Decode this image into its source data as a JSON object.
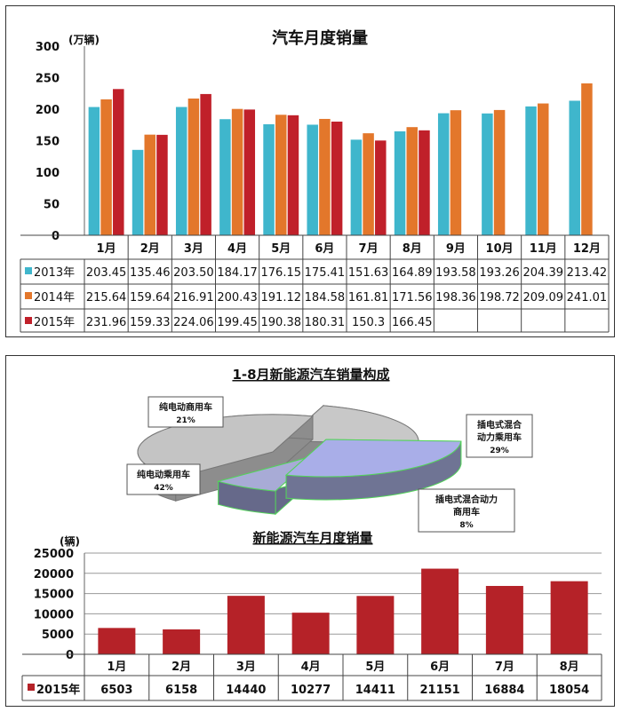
{
  "colors": {
    "y2013": "#3fb6cc",
    "y2014": "#e3772b",
    "y2015": "#c0202a",
    "nev": "#b52228",
    "grid": "#9a9a9a"
  },
  "chart_data": [
    {
      "type": "bar",
      "title": "汽车月度销量",
      "ylabel": "(万辆)",
      "ylim": [
        0,
        300
      ],
      "yticks": [
        "0",
        "50",
        "100",
        "150",
        "200",
        "250",
        "300"
      ],
      "categories": [
        "1月",
        "2月",
        "3月",
        "4月",
        "5月",
        "6月",
        "7月",
        "8月",
        "9月",
        "10月",
        "11月",
        "12月"
      ],
      "series": [
        {
          "name": "2013年",
          "values": [
            203.45,
            135.46,
            203.5,
            184.17,
            176.15,
            175.41,
            151.63,
            164.89,
            193.58,
            193.26,
            204.39,
            213.42
          ],
          "labels": [
            "203.45",
            "135.46",
            "203.50",
            "184.17",
            "176.15",
            "175.41",
            "151.63",
            "164.89",
            "193.58",
            "193.26",
            "204.39",
            "213.42"
          ]
        },
        {
          "name": "2014年",
          "values": [
            215.64,
            159.64,
            216.91,
            200.43,
            191.12,
            184.58,
            161.81,
            171.56,
            198.36,
            198.72,
            209.09,
            241.01
          ],
          "labels": [
            "215.64",
            "159.64",
            "216.91",
            "200.43",
            "191.12",
            "184.58",
            "161.81",
            "171.56",
            "198.36",
            "198.72",
            "209.09",
            "241.01"
          ]
        },
        {
          "name": "2015年",
          "values": [
            231.96,
            159.33,
            224.06,
            199.45,
            190.38,
            180.31,
            150.3,
            166.45,
            null,
            null,
            null,
            null
          ],
          "labels": [
            "231.96",
            "159.33",
            "224.06",
            "199.45",
            "190.38",
            "180.31",
            "150.3",
            "166.45",
            "",
            "",
            "",
            ""
          ]
        }
      ],
      "grid": false,
      "legend": "data-table"
    },
    {
      "type": "pie",
      "title": "1-8月新能源汽车销量构成",
      "slices": [
        {
          "label": "纯电动商用车",
          "pct": "21%",
          "value": 21
        },
        {
          "label": "插电式混合动力乘用车",
          "label_lines": [
            "插电式混合",
            "动力乘用车"
          ],
          "pct": "29%",
          "value": 29
        },
        {
          "label": "插电式混合动力商用车",
          "label_lines": [
            "插电式混合动力",
            "商用车"
          ],
          "pct": "8%",
          "value": 8
        },
        {
          "label": "纯电动乘用车",
          "pct": "42%",
          "value": 42
        }
      ],
      "style": "3d-exploded"
    },
    {
      "type": "bar",
      "title": "新能源汽车月度销量",
      "ylabel": "(辆)",
      "ylim": [
        0,
        25000
      ],
      "yticks": [
        "0",
        "5000",
        "10000",
        "15000",
        "20000",
        "25000"
      ],
      "categories": [
        "1月",
        "2月",
        "3月",
        "4月",
        "5月",
        "6月",
        "7月",
        "8月"
      ],
      "series": [
        {
          "name": "2015年",
          "values": [
            6503,
            6158,
            14440,
            10277,
            14411,
            21151,
            16884,
            18054
          ],
          "labels": [
            "6503",
            "6158",
            "14440",
            "10277",
            "14411",
            "21151",
            "16884",
            "18054"
          ]
        }
      ],
      "grid": true,
      "legend": "data-table"
    }
  ]
}
